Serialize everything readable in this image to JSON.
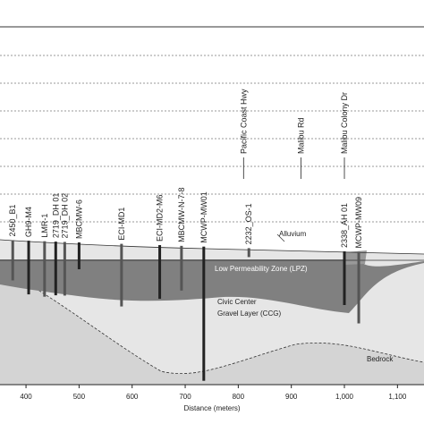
{
  "chart_data": {
    "type": "cross-section",
    "xlabel": "Distance (meters)",
    "xlim": [
      351,
      1150
    ],
    "xticks": [
      400,
      500,
      600,
      700,
      800,
      900,
      {
        "value": 1000,
        "label": "1,000"
      },
      {
        "value": 1100,
        "label": "1,100"
      }
    ],
    "wells": {
      "labels": [
        "2450_B1",
        "GH9-M4",
        "LMR-1",
        "2719_DH 01",
        "2719_DH 02",
        "MBCMW-6",
        "ECI-MD1",
        "ECI-MD2-M6",
        "MBCMW-N-7-8",
        "MCWP-MW01",
        "2232_OS-1",
        "2338_AH 01",
        "MCWP-MW09"
      ],
      "x": [
        375,
        405,
        435,
        456,
        473,
        500,
        580,
        652,
        693,
        735,
        820,
        1000,
        1027
      ]
    },
    "roads": {
      "labels": [
        "Pacific Coast Hwy",
        "Malibu Rd",
        "Malibu Colony Dr"
      ],
      "x": [
        810,
        918,
        1000
      ]
    },
    "annotations": [
      "Alluvium",
      "Low Permeability Zone (LPZ)",
      "Civic Center",
      "Gravel Layer (CCG)",
      "Bedrock"
    ]
  }
}
